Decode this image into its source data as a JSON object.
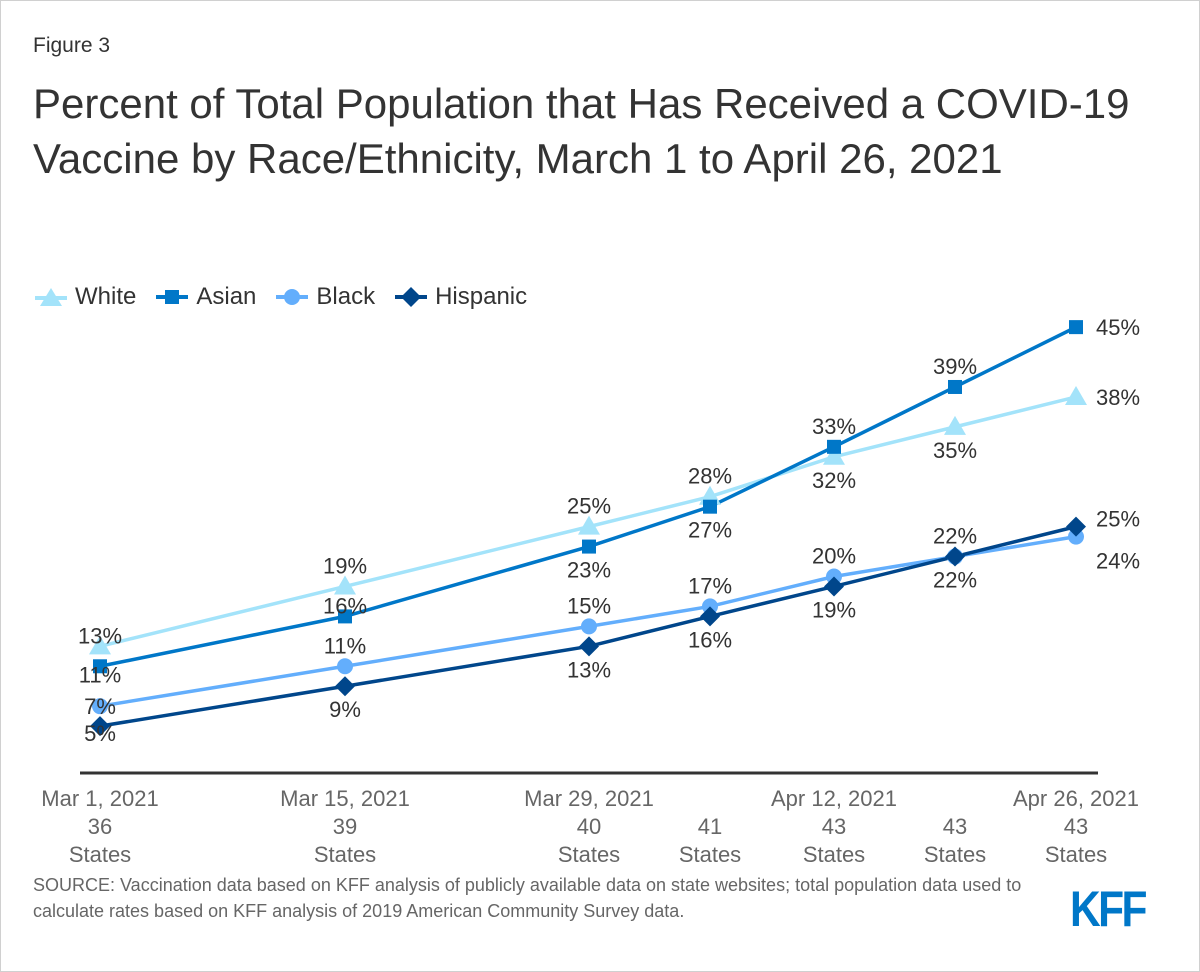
{
  "figure_label": "Figure 3",
  "source": "SOURCE: Vaccination data based on KFF analysis of publicly available data on state websites; total population data used to calculate rates based on KFF analysis of 2019 American Community Survey data.",
  "logo": "KFF",
  "chart_data": {
    "type": "line",
    "title": "Percent of Total Population that Has Received a COVID-19 Vaccine by Race/Ethnicity, March 1 to April 26, 2021",
    "x": [
      "2021-03-01",
      "2021-03-15",
      "2021-03-29",
      "2021-04-05",
      "2021-04-12",
      "2021-04-19",
      "2021-04-26"
    ],
    "x_tick_labels": [
      "Mar 1, 2021",
      "Mar 15, 2021",
      "Mar 29, 2021",
      "",
      "Apr 12, 2021",
      "",
      "Apr 26, 2021"
    ],
    "states_labels": [
      {
        "count": "36",
        "word": "States"
      },
      {
        "count": "39",
        "word": "States"
      },
      {
        "count": "40",
        "word": "States"
      },
      {
        "count": "41",
        "word": "States"
      },
      {
        "count": "43",
        "word": "States"
      },
      {
        "count": "43",
        "word": "States"
      },
      {
        "count": "43",
        "word": "States"
      }
    ],
    "ylim": [
      0,
      50
    ],
    "y_unit": "%",
    "grid": false,
    "legend_position": "top-left",
    "series": [
      {
        "name": "White",
        "marker": "triangle",
        "color": "#a3e3fa",
        "values": [
          13,
          19,
          25,
          28,
          32,
          35,
          38
        ],
        "labels": [
          "13%",
          "19%",
          "25%",
          "28%",
          "32%",
          "35%",
          "38%"
        ]
      },
      {
        "name": "Asian",
        "marker": "square",
        "color": "#0077c8",
        "values": [
          11,
          16,
          23,
          27,
          33,
          39,
          45
        ],
        "labels": [
          "11%",
          "16%",
          "23%",
          "27%",
          "33%",
          "39%",
          "45%"
        ]
      },
      {
        "name": "Black",
        "marker": "circle",
        "color": "#63aefc",
        "values": [
          7,
          11,
          15,
          17,
          20,
          22,
          24
        ],
        "labels": [
          "7%",
          "11%",
          "15%",
          "17%",
          "20%",
          "22%",
          "24%"
        ]
      },
      {
        "name": "Hispanic",
        "marker": "diamond",
        "color": "#00468b",
        "values": [
          5,
          9,
          13,
          16,
          19,
          22,
          25
        ],
        "labels": [
          "5%",
          "9%",
          "13%",
          "16%",
          "19%",
          "22%",
          "25%"
        ]
      }
    ]
  }
}
